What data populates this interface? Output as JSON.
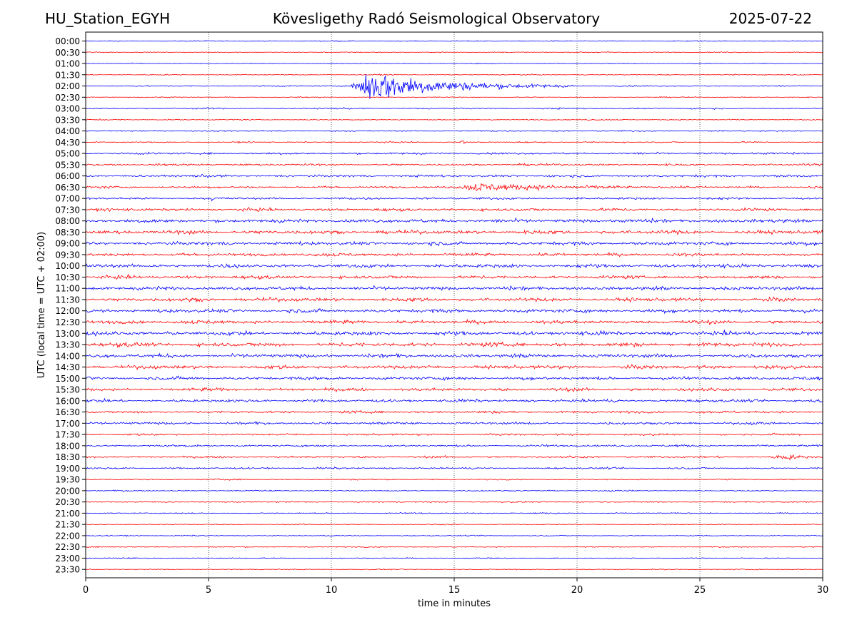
{
  "header": {
    "station": "HU_Station_EGYH",
    "title": "Kövesligethy Radó Seismological Observatory",
    "date": "2025-07-22"
  },
  "chart_data": {
    "type": "line",
    "title": "Kövesligethy Radó Seismological Observatory",
    "xlabel": "time in minutes",
    "ylabel": "UTC (local time = UTC + 02:00)",
    "xlim": [
      0,
      30
    ],
    "x_ticks": [
      0,
      5,
      10,
      15,
      20,
      25,
      30
    ],
    "grid": "vertical dotted lines at x ticks",
    "colors": {
      "even_rows": "#0000ff",
      "odd_rows": "#ff0000"
    },
    "rows": [
      {
        "label": "00:00",
        "noise": 0.12,
        "events": []
      },
      {
        "label": "00:30",
        "noise": 0.12,
        "events": []
      },
      {
        "label": "01:00",
        "noise": 0.12,
        "events": []
      },
      {
        "label": "01:30",
        "noise": 0.12,
        "events": []
      },
      {
        "label": "02:00",
        "noise": 0.15,
        "events": [
          {
            "start": 10.8,
            "peak": 11.5,
            "end": 20.0,
            "amp": 5.2
          }
        ]
      },
      {
        "label": "02:30",
        "noise": 0.12,
        "events": []
      },
      {
        "label": "03:00",
        "noise": 0.18,
        "events": []
      },
      {
        "label": "03:30",
        "noise": 0.14,
        "events": []
      },
      {
        "label": "04:00",
        "noise": 0.16,
        "events": []
      },
      {
        "label": "04:30",
        "noise": 0.16,
        "events": [
          {
            "start": 15.2,
            "peak": 15.35,
            "end": 15.6,
            "amp": 0.7
          }
        ]
      },
      {
        "label": "05:00",
        "noise": 0.25,
        "events": []
      },
      {
        "label": "05:30",
        "noise": 0.25,
        "events": []
      },
      {
        "label": "06:00",
        "noise": 0.3,
        "events": []
      },
      {
        "label": "06:30",
        "noise": 0.28,
        "events": [
          {
            "start": 15.2,
            "peak": 16.0,
            "end": 24.0,
            "amp": 1.2
          }
        ]
      },
      {
        "label": "07:00",
        "noise": 0.28,
        "events": [
          {
            "start": 5.0,
            "peak": 5.1,
            "end": 5.3,
            "amp": 0.9
          }
        ]
      },
      {
        "label": "07:30",
        "noise": 0.35,
        "events": []
      },
      {
        "label": "08:00",
        "noise": 0.45,
        "events": []
      },
      {
        "label": "08:30",
        "noise": 0.45,
        "events": []
      },
      {
        "label": "09:00",
        "noise": 0.45,
        "events": []
      },
      {
        "label": "09:30",
        "noise": 0.4,
        "events": []
      },
      {
        "label": "10:00",
        "noise": 0.45,
        "events": []
      },
      {
        "label": "10:30",
        "noise": 0.4,
        "events": []
      },
      {
        "label": "11:00",
        "noise": 0.45,
        "events": []
      },
      {
        "label": "11:30",
        "noise": 0.45,
        "events": []
      },
      {
        "label": "12:00",
        "noise": 0.45,
        "events": []
      },
      {
        "label": "12:30",
        "noise": 0.45,
        "events": []
      },
      {
        "label": "13:00",
        "noise": 0.5,
        "events": []
      },
      {
        "label": "13:30",
        "noise": 0.5,
        "events": []
      },
      {
        "label": "14:00",
        "noise": 0.45,
        "events": []
      },
      {
        "label": "14:30",
        "noise": 0.45,
        "events": []
      },
      {
        "label": "15:00",
        "noise": 0.4,
        "events": []
      },
      {
        "label": "15:30",
        "noise": 0.4,
        "events": []
      },
      {
        "label": "16:00",
        "noise": 0.35,
        "events": []
      },
      {
        "label": "16:30",
        "noise": 0.3,
        "events": []
      },
      {
        "label": "17:00",
        "noise": 0.3,
        "events": []
      },
      {
        "label": "17:30",
        "noise": 0.25,
        "events": []
      },
      {
        "label": "18:00",
        "noise": 0.25,
        "events": []
      },
      {
        "label": "18:30",
        "noise": 0.25,
        "events": [
          {
            "start": 27.8,
            "peak": 28.5,
            "end": 29.5,
            "amp": 0.8
          }
        ]
      },
      {
        "label": "19:00",
        "noise": 0.22,
        "events": []
      },
      {
        "label": "19:30",
        "noise": 0.15,
        "events": []
      },
      {
        "label": "20:00",
        "noise": 0.15,
        "events": []
      },
      {
        "label": "20:30",
        "noise": 0.15,
        "events": []
      },
      {
        "label": "21:00",
        "noise": 0.15,
        "events": []
      },
      {
        "label": "21:30",
        "noise": 0.12,
        "events": []
      },
      {
        "label": "22:00",
        "noise": 0.12,
        "events": []
      },
      {
        "label": "22:30",
        "noise": 0.12,
        "events": []
      },
      {
        "label": "23:00",
        "noise": 0.12,
        "events": []
      },
      {
        "label": "23:30",
        "noise": 0.12,
        "events": []
      }
    ]
  }
}
